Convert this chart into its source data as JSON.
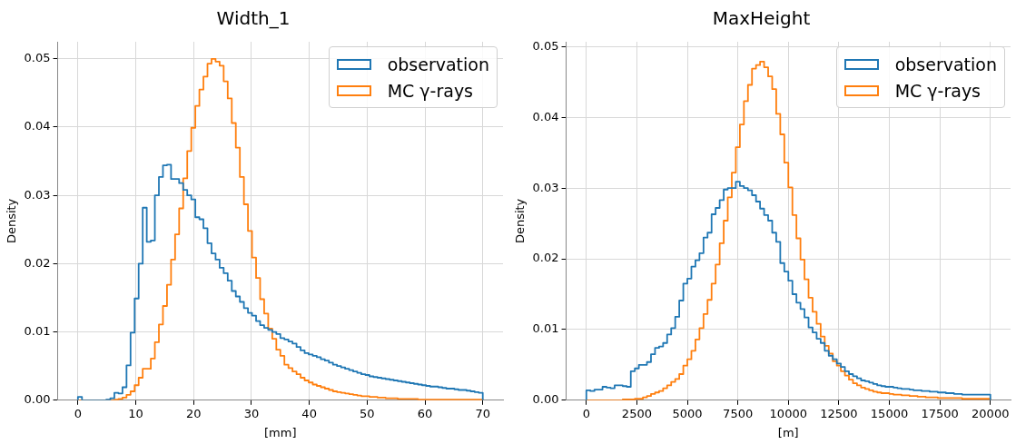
{
  "chart_data": [
    {
      "type": "histogram",
      "title": "Width_1",
      "xlabel": "[mm]",
      "ylabel": "Density",
      "grid": true,
      "legend": "top right",
      "bins": [
        0,
        0.7,
        1.4,
        2.1,
        2.8,
        3.5,
        4.2,
        4.9,
        5.6,
        6.3,
        7,
        7.7,
        8.4,
        9.1,
        9.8,
        10.5,
        11.2,
        11.9,
        12.6,
        13.3,
        14,
        14.7,
        15.4,
        16.1,
        16.8,
        17.5,
        18.2,
        18.9,
        19.6,
        20.3,
        21,
        21.7,
        22.4,
        23.1,
        23.8,
        24.5,
        25.2,
        25.9,
        26.6,
        27.3,
        28,
        28.7,
        29.4,
        30.1,
        30.8,
        31.5,
        32.2,
        32.9,
        33.6,
        34.3,
        35,
        35.7,
        36.4,
        37.1,
        37.8,
        38.5,
        39.2,
        39.9,
        40.6,
        41.3,
        42,
        42.7,
        43.4,
        44.1,
        44.8,
        45.5,
        46.2,
        46.9,
        47.6,
        48.3,
        49,
        49.7,
        50.4,
        51.1,
        51.8,
        52.5,
        53.2,
        53.9,
        54.6,
        55.3,
        56,
        56.7,
        57.4,
        58.1,
        58.8,
        59.5,
        60.2,
        60.9,
        61.6,
        62.3,
        63,
        63.7,
        64.4,
        65.1,
        65.8,
        66.5,
        67.2,
        67.9,
        68.6,
        69.3,
        70
      ],
      "series": [
        {
          "name": "observation",
          "color": "#1f77b4",
          "values": [
            0.0005,
            0,
            0,
            0,
            0,
            0,
            0,
            0.0001,
            0.0003,
            0.0011,
            0.001,
            0.0019,
            0.0051,
            0.0099,
            0.0149,
            0.02,
            0.0282,
            0.0232,
            0.0234,
            0.03,
            0.0327,
            0.0344,
            0.0345,
            0.0324,
            0.0324,
            0.0318,
            0.0308,
            0.03,
            0.0294,
            0.0268,
            0.0265,
            0.0252,
            0.023,
            0.0215,
            0.0206,
            0.0194,
            0.0186,
            0.0175,
            0.016,
            0.0152,
            0.0144,
            0.0135,
            0.0128,
            0.0124,
            0.0116,
            0.011,
            0.0106,
            0.0103,
            0.01,
            0.0097,
            0.0091,
            0.0089,
            0.0086,
            0.0083,
            0.0078,
            0.0073,
            0.0069,
            0.0067,
            0.0065,
            0.0063,
            0.006,
            0.0058,
            0.0055,
            0.0052,
            0.005,
            0.0048,
            0.0046,
            0.0044,
            0.0042,
            0.004,
            0.0038,
            0.0037,
            0.0035,
            0.0034,
            0.0033,
            0.0032,
            0.0031,
            0.003,
            0.0029,
            0.0028,
            0.0027,
            0.0026,
            0.0025,
            0.0024,
            0.0023,
            0.0022,
            0.0021,
            0.002,
            0.002,
            0.0019,
            0.0018,
            0.0017,
            0.0017,
            0.0016,
            0.0015,
            0.0015,
            0.0014,
            0.0013,
            0.0012,
            0.0011
          ]
        },
        {
          "name": "MC γ-rays",
          "color": "#ff7f0e",
          "values": [
            0,
            0,
            0,
            0,
            0,
            0,
            0,
            0,
            0,
            0.0001,
            0.0002,
            0.0004,
            0.0008,
            0.0013,
            0.0022,
            0.0033,
            0.0046,
            0.0046,
            0.0061,
            0.0085,
            0.0111,
            0.0138,
            0.0169,
            0.0206,
            0.0243,
            0.0281,
            0.0325,
            0.0365,
            0.0399,
            0.0431,
            0.0455,
            0.0474,
            0.0493,
            0.05,
            0.0496,
            0.049,
            0.0467,
            0.0442,
            0.0406,
            0.037,
            0.0327,
            0.0287,
            0.0248,
            0.0209,
            0.0179,
            0.0148,
            0.0127,
            0.0105,
            0.009,
            0.0074,
            0.0065,
            0.0052,
            0.0047,
            0.0042,
            0.0038,
            0.0033,
            0.0029,
            0.0026,
            0.0023,
            0.0021,
            0.0019,
            0.0017,
            0.0015,
            0.0013,
            0.0012,
            0.0011,
            0.001,
            0.0009,
            0.0008,
            0.0007,
            0.0006,
            0.0006,
            0.0005,
            0.0005,
            0.0004,
            0.0004,
            0.0003,
            0.0003,
            0.0003,
            0.0002,
            0.0002,
            0.0002,
            0.0002,
            0.0002,
            0.0001,
            0.0001,
            0.0001,
            0.0001,
            0.0001,
            0.0001,
            0.0001,
            0.0001,
            0.0001,
            0.0001,
            0.0001,
            0.0001,
            0.0001,
            0.0001,
            0.0001,
            0.0001
          ]
        }
      ],
      "xlim": [
        -3.5,
        73.5
      ],
      "xticks": [
        0,
        10,
        20,
        30,
        40,
        50,
        60,
        70
      ],
      "ylim": [
        0,
        0.0525
      ],
      "yticks": [
        {
          "value": 0,
          "label": "0.00"
        },
        {
          "value": 0.01,
          "label": "0.01"
        },
        {
          "value": 0.02,
          "label": "0.02"
        },
        {
          "value": 0.03,
          "label": "0.03"
        },
        {
          "value": 0.04,
          "label": "0.04"
        },
        {
          "value": 0.05,
          "label": "0.05"
        }
      ]
    },
    {
      "type": "histogram",
      "title": "MaxHeight",
      "xlabel": "[m]",
      "ylabel": "Density",
      "grid": true,
      "legend": "top right",
      "bins": [
        0,
        200,
        400,
        600,
        800,
        1000,
        1200,
        1400,
        1600,
        1800,
        2000,
        2200,
        2400,
        2600,
        2800,
        3000,
        3200,
        3400,
        3600,
        3800,
        4000,
        4200,
        4400,
        4600,
        4800,
        5000,
        5200,
        5400,
        5600,
        5800,
        6000,
        6200,
        6400,
        6600,
        6800,
        7000,
        7200,
        7400,
        7600,
        7800,
        8000,
        8200,
        8400,
        8600,
        8800,
        9000,
        9200,
        9400,
        9600,
        9800,
        10000,
        10200,
        10400,
        10600,
        10800,
        11000,
        11200,
        11400,
        11600,
        11800,
        12000,
        12200,
        12400,
        12600,
        12800,
        13000,
        13200,
        13400,
        13600,
        13800,
        14000,
        14200,
        14400,
        14600,
        14800,
        15000,
        15200,
        15400,
        15600,
        15800,
        16000,
        16200,
        16400,
        16600,
        16800,
        17000,
        17200,
        17400,
        17600,
        17800,
        18000,
        18200,
        18400,
        18600,
        18800,
        19000,
        19200,
        19400,
        19600,
        19800,
        20000
      ],
      "series": [
        {
          "name": "observation",
          "color": "#1f77b4",
          "values": [
            0.0014,
            0.0013,
            0.0015,
            0.0015,
            0.0019,
            0.0018,
            0.0017,
            0.0021,
            0.0021,
            0.002,
            0.0019,
            0.0041,
            0.0045,
            0.005,
            0.005,
            0.0054,
            0.0065,
            0.0074,
            0.0076,
            0.0081,
            0.0093,
            0.0102,
            0.0118,
            0.0141,
            0.0165,
            0.0172,
            0.0189,
            0.0198,
            0.0208,
            0.023,
            0.0237,
            0.0263,
            0.0272,
            0.0283,
            0.0298,
            0.03,
            0.03,
            0.0309,
            0.0303,
            0.03,
            0.0297,
            0.029,
            0.0281,
            0.0271,
            0.0262,
            0.0254,
            0.0237,
            0.0224,
            0.0194,
            0.0182,
            0.0169,
            0.015,
            0.0138,
            0.0129,
            0.0117,
            0.0103,
            0.0096,
            0.0087,
            0.0081,
            0.007,
            0.0063,
            0.0058,
            0.0052,
            0.0047,
            0.0041,
            0.0037,
            0.0034,
            0.0031,
            0.0028,
            0.0027,
            0.0025,
            0.0023,
            0.0021,
            0.002,
            0.0019,
            0.0019,
            0.0018,
            0.0017,
            0.0016,
            0.0016,
            0.0015,
            0.0014,
            0.0014,
            0.0013,
            0.0013,
            0.0012,
            0.0012,
            0.0011,
            0.0011,
            0.001,
            0.001,
            0.0009,
            0.0009,
            0.0008,
            0.0008,
            0.0008,
            0.0008,
            0.0008,
            0.0008,
            0.0008
          ]
        },
        {
          "name": "MC γ-rays",
          "color": "#ff7f0e",
          "values": [
            0,
            0,
            0,
            0,
            0,
            0,
            0,
            0,
            0,
            0.0001,
            0.0001,
            0.0001,
            0.0002,
            0.0002,
            0.0004,
            0.0006,
            0.0009,
            0.0011,
            0.0013,
            0.0017,
            0.0021,
            0.0026,
            0.003,
            0.0037,
            0.0049,
            0.0058,
            0.007,
            0.0086,
            0.0102,
            0.0122,
            0.0142,
            0.0165,
            0.0192,
            0.0222,
            0.0254,
            0.0287,
            0.0322,
            0.0358,
            0.039,
            0.0423,
            0.0446,
            0.0469,
            0.0474,
            0.0479,
            0.0471,
            0.0458,
            0.044,
            0.0405,
            0.0376,
            0.0336,
            0.0301,
            0.0262,
            0.0229,
            0.0199,
            0.0171,
            0.0145,
            0.0125,
            0.0108,
            0.009,
            0.0077,
            0.0066,
            0.0055,
            0.0049,
            0.0041,
            0.0035,
            0.0029,
            0.0024,
            0.0021,
            0.0018,
            0.0016,
            0.0014,
            0.0012,
            0.0011,
            0.001,
            0.001,
            0.0009,
            0.0008,
            0.0008,
            0.0007,
            0.0007,
            0.0006,
            0.0006,
            0.0005,
            0.0005,
            0.0004,
            0.0004,
            0.0004,
            0.0003,
            0.0003,
            0.0003,
            0.0003,
            0.0003,
            0.0003,
            0.0002,
            0.0002,
            0.0002,
            0.0002,
            0.0002,
            0.0002,
            0.0002
          ]
        }
      ],
      "xlim": [
        -1000,
        21000
      ],
      "xticks": [
        0,
        2500,
        5000,
        7500,
        10000,
        12500,
        15000,
        17500,
        20000
      ],
      "ylim": [
        0,
        0.0507
      ],
      "yticks": [
        {
          "value": 0,
          "label": "0.00"
        },
        {
          "value": 0.01,
          "label": "0.01"
        },
        {
          "value": 0.02,
          "label": "0.02"
        },
        {
          "value": 0.03,
          "label": "0.03"
        },
        {
          "value": 0.04,
          "label": "0.04"
        },
        {
          "value": 0.05,
          "label": "0.05"
        }
      ]
    }
  ]
}
